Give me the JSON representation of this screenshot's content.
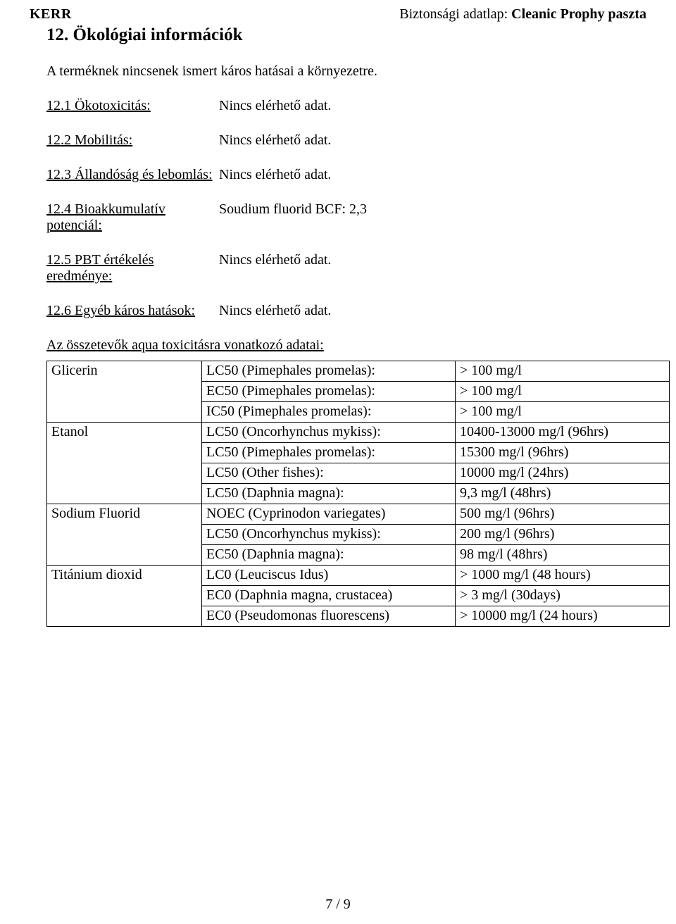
{
  "header": {
    "brand": "KERR",
    "doc_label": "Biztonsági adatlap",
    "product": "Cleanic Prophy paszta"
  },
  "section": {
    "number_title": "12. Ökológiai információk"
  },
  "intro": "A terméknek nincsenek ismert káros hatásai a környezetre.",
  "no_data": "Nincs elérhető adat.",
  "kv": {
    "k1": "12.1 Ökotoxicitás:",
    "k2": "12.2 Mobilitás:",
    "k3": "12.3 Állandóság és lebomlás:",
    "k4": "12.4 Bioakkumulatív potenciál:",
    "v4": "Soudium fluorid BCF: 2,3",
    "k5": "12.5 PBT értékelés eredménye:",
    "k6": "12.6 Egyéb káros hatások:"
  },
  "tox_header": "Az összetevők aqua toxicitásra vonatkozó adatai:",
  "table": {
    "glicerin": {
      "name": "Glicerin",
      "r1t": "LC50 (Pimephales promelas):",
      "r1v": "> 100 mg/l",
      "r2t": "EC50 (Pimephales promelas):",
      "r2v": "> 100 mg/l",
      "r3t": "IC50 (Pimephales promelas):",
      "r3v": "> 100 mg/l"
    },
    "etanol": {
      "name": "Etanol",
      "r1t": "LC50 (Oncorhynchus mykiss):",
      "r1v": "10400-13000 mg/l (96hrs)",
      "r2t": "LC50 (Pimephales promelas):",
      "r2v": "15300 mg/l (96hrs)",
      "r3t": "LC50 (Other fishes):",
      "r3v": "10000 mg/l (24hrs)",
      "r4t": "LC50 (Daphnia magna):",
      "r4v": "9,3 mg/l (48hrs)"
    },
    "sodium": {
      "name": "Sodium Fluorid",
      "r1t": "NOEC (Cyprinodon variegates)",
      "r1v": "500 mg/l (96hrs)",
      "r2t": "LC50 (Oncorhynchus mykiss):",
      "r2v": "200 mg/l (96hrs)",
      "r3t": "EC50 (Daphnia magna):",
      "r3v": "98 mg/l (48hrs)"
    },
    "titan": {
      "name": "Titánium dioxid",
      "r1t": "LC0 (Leuciscus Idus)",
      "r1v": "> 1000 mg/l (48 hours)",
      "r2t": "EC0 (Daphnia magna, crustacea)",
      "r2v": "> 3 mg/l (30days)",
      "r3t": "EC0 (Pseudomonas fluorescens)",
      "r3v": "> 10000 mg/l (24 hours)"
    }
  },
  "footer": "7 / 9"
}
